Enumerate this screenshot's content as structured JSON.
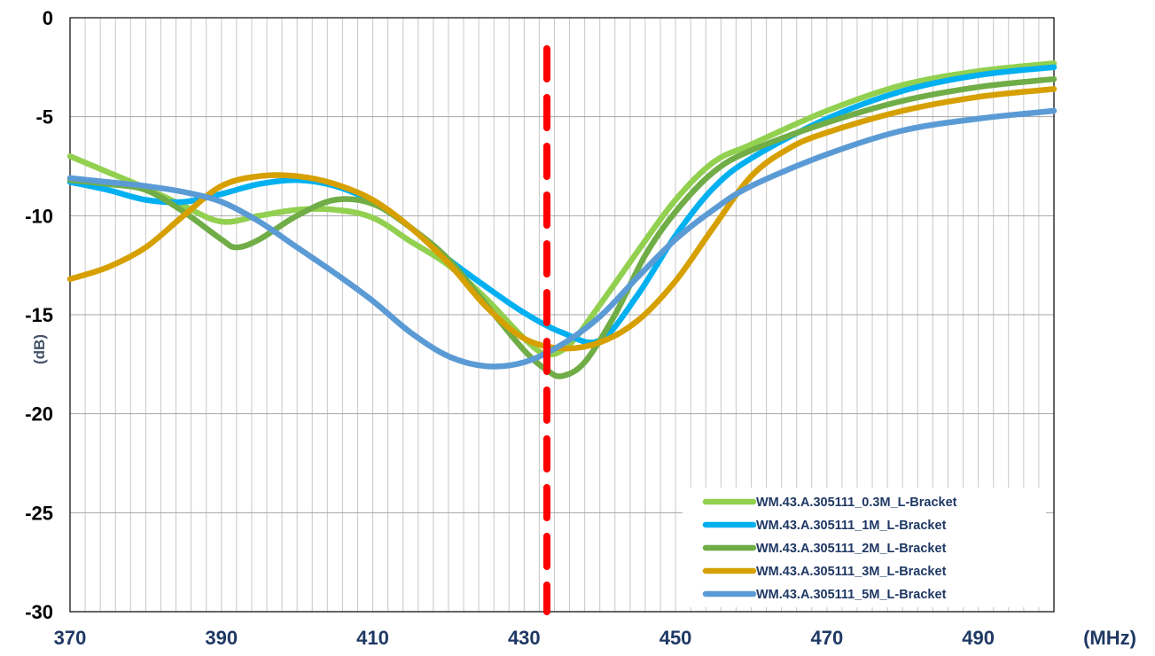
{
  "chart_data": {
    "type": "line",
    "xlabel": "(MHz)",
    "ylabel": "(dB)",
    "xlim": [
      370,
      500
    ],
    "ylim": [
      -30,
      0
    ],
    "xticks": [
      "370",
      "390",
      "410",
      "430",
      "450",
      "470",
      "490"
    ],
    "yticks": [
      "0",
      "-5",
      "-10",
      "-15",
      "-20",
      "-25",
      "-30"
    ],
    "x_minor_step": 2,
    "grid": true,
    "legend_position": "bottom-right",
    "marker_line": {
      "x": 433,
      "color": "#ff0000",
      "style": "dashed"
    },
    "series": [
      {
        "name": "WM.43.A.305111_0.3M_L-Bracket",
        "color": "#92d050",
        "points": [
          [
            370,
            -7.0
          ],
          [
            375,
            -7.8
          ],
          [
            380,
            -8.6
          ],
          [
            385,
            -9.5
          ],
          [
            390,
            -10.3
          ],
          [
            395,
            -10.0
          ],
          [
            400,
            -9.7
          ],
          [
            405,
            -9.7
          ],
          [
            410,
            -10.1
          ],
          [
            415,
            -11.3
          ],
          [
            420,
            -12.5
          ],
          [
            425,
            -14.2
          ],
          [
            430,
            -16.2
          ],
          [
            433,
            -17.0
          ],
          [
            436,
            -16.5
          ],
          [
            440,
            -14.5
          ],
          [
            445,
            -11.8
          ],
          [
            450,
            -9.2
          ],
          [
            455,
            -7.3
          ],
          [
            460,
            -6.4
          ],
          [
            470,
            -4.7
          ],
          [
            480,
            -3.4
          ],
          [
            490,
            -2.7
          ],
          [
            500,
            -2.3
          ]
        ]
      },
      {
        "name": "WM.43.A.305111_1M_L-Bracket",
        "color": "#00b0f0",
        "points": [
          [
            370,
            -8.3
          ],
          [
            375,
            -8.7
          ],
          [
            380,
            -9.2
          ],
          [
            385,
            -9.3
          ],
          [
            390,
            -8.9
          ],
          [
            395,
            -8.4
          ],
          [
            400,
            -8.2
          ],
          [
            405,
            -8.5
          ],
          [
            410,
            -9.3
          ],
          [
            415,
            -10.6
          ],
          [
            420,
            -12.2
          ],
          [
            425,
            -13.6
          ],
          [
            430,
            -14.9
          ],
          [
            435,
            -15.9
          ],
          [
            440,
            -16.3
          ],
          [
            445,
            -14.0
          ],
          [
            450,
            -11.0
          ],
          [
            455,
            -8.6
          ],
          [
            460,
            -7.1
          ],
          [
            470,
            -5.1
          ],
          [
            480,
            -3.7
          ],
          [
            490,
            -2.9
          ],
          [
            500,
            -2.5
          ]
        ]
      },
      {
        "name": "WM.43.A.305111_2M_L-Bracket",
        "color": "#70ad47",
        "points": [
          [
            370,
            -8.2
          ],
          [
            375,
            -8.4
          ],
          [
            380,
            -8.7
          ],
          [
            385,
            -9.8
          ],
          [
            390,
            -11.2
          ],
          [
            392,
            -11.6
          ],
          [
            395,
            -11.2
          ],
          [
            400,
            -10.0
          ],
          [
            405,
            -9.2
          ],
          [
            410,
            -9.4
          ],
          [
            415,
            -10.6
          ],
          [
            420,
            -12.2
          ],
          [
            425,
            -14.5
          ],
          [
            430,
            -16.8
          ],
          [
            433,
            -17.8
          ],
          [
            435,
            -18.1
          ],
          [
            438,
            -17.4
          ],
          [
            442,
            -15.0
          ],
          [
            446,
            -12.0
          ],
          [
            450,
            -9.8
          ],
          [
            455,
            -7.8
          ],
          [
            460,
            -6.7
          ],
          [
            470,
            -5.3
          ],
          [
            480,
            -4.2
          ],
          [
            490,
            -3.5
          ],
          [
            500,
            -3.1
          ]
        ]
      },
      {
        "name": "WM.43.A.305111_3M_L-Bracket",
        "color": "#d6a000",
        "points": [
          [
            370,
            -13.2
          ],
          [
            375,
            -12.6
          ],
          [
            380,
            -11.6
          ],
          [
            385,
            -10.0
          ],
          [
            390,
            -8.5
          ],
          [
            395,
            -8.0
          ],
          [
            400,
            -8.0
          ],
          [
            405,
            -8.4
          ],
          [
            410,
            -9.2
          ],
          [
            415,
            -10.6
          ],
          [
            420,
            -12.4
          ],
          [
            425,
            -14.6
          ],
          [
            430,
            -16.2
          ],
          [
            435,
            -16.7
          ],
          [
            440,
            -16.4
          ],
          [
            445,
            -15.3
          ],
          [
            450,
            -13.3
          ],
          [
            455,
            -10.6
          ],
          [
            460,
            -8.0
          ],
          [
            465,
            -6.6
          ],
          [
            470,
            -5.8
          ],
          [
            480,
            -4.7
          ],
          [
            490,
            -4.0
          ],
          [
            500,
            -3.6
          ]
        ]
      },
      {
        "name": "WM.43.A.305111_5M_L-Bracket",
        "color": "#5b9bd5",
        "points": [
          [
            370,
            -8.1
          ],
          [
            375,
            -8.3
          ],
          [
            380,
            -8.5
          ],
          [
            385,
            -8.8
          ],
          [
            390,
            -9.3
          ],
          [
            395,
            -10.3
          ],
          [
            400,
            -11.6
          ],
          [
            405,
            -12.9
          ],
          [
            410,
            -14.3
          ],
          [
            415,
            -15.9
          ],
          [
            420,
            -17.1
          ],
          [
            425,
            -17.6
          ],
          [
            430,
            -17.4
          ],
          [
            435,
            -16.5
          ],
          [
            440,
            -15.1
          ],
          [
            445,
            -13.1
          ],
          [
            450,
            -11.2
          ],
          [
            455,
            -9.7
          ],
          [
            460,
            -8.5
          ],
          [
            470,
            -6.9
          ],
          [
            480,
            -5.7
          ],
          [
            490,
            -5.1
          ],
          [
            500,
            -4.7
          ]
        ]
      }
    ]
  }
}
